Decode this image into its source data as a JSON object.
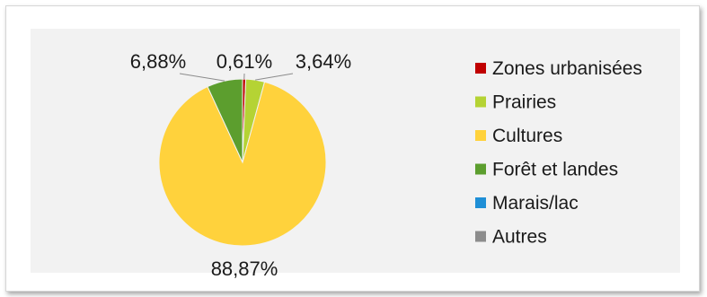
{
  "chart_data": {
    "type": "pie",
    "categories": [
      "Zones urbanisées",
      "Prairies",
      "Cultures",
      "Forêt et landes",
      "Marais/lac",
      "Autres"
    ],
    "values": [
      0.61,
      3.64,
      88.87,
      6.88,
      0.0,
      0.0
    ],
    "labels": [
      "0,61%",
      "3,64%",
      "88,87%",
      "6,88%",
      "",
      ""
    ],
    "colors": [
      "#c00000",
      "#b5d334",
      "#ffd23c",
      "#5c9e2e",
      "#1f8fd6",
      "#8c8c8c"
    ],
    "legend_position": "right"
  }
}
